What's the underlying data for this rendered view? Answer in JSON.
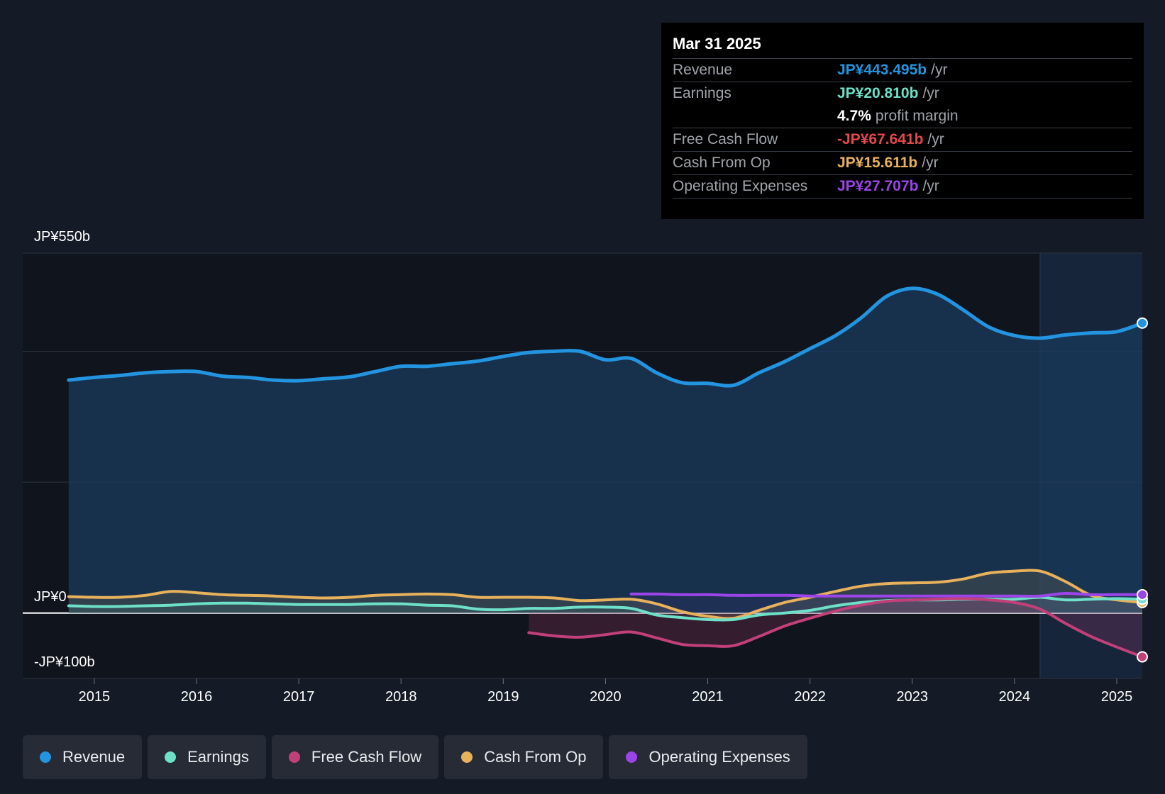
{
  "tooltip": {
    "date": "Mar 31 2025",
    "rows": [
      {
        "label": "Revenue",
        "value": "JP¥443.495b",
        "unit": "/yr",
        "color": "#2394df"
      },
      {
        "label": "Earnings",
        "value": "JP¥20.810b",
        "unit": "/yr",
        "color": "#6ee0c8"
      },
      {
        "label": "",
        "value": "4.7%",
        "unit": "profit margin",
        "color": "#ffffff"
      },
      {
        "label": "Free Cash Flow",
        "value": "-JP¥67.641b",
        "unit": "/yr",
        "color": "#e5484d"
      },
      {
        "label": "Cash From Op",
        "value": "JP¥15.611b",
        "unit": "/yr",
        "color": "#e8b15c"
      },
      {
        "label": "Operating Expenses",
        "value": "JP¥27.707b",
        "unit": "/yr",
        "color": "#9b45e8"
      }
    ]
  },
  "axis": {
    "top_label": "JP¥550b",
    "zero_label": "JP¥0",
    "bottom_label": "-JP¥100b"
  },
  "legend": [
    {
      "label": "Revenue",
      "color": "#2394df"
    },
    {
      "label": "Earnings",
      "color": "#6ee0c8"
    },
    {
      "label": "Free Cash Flow",
      "color": "#c2407a"
    },
    {
      "label": "Cash From Op",
      "color": "#e8b15c"
    },
    {
      "label": "Operating Expenses",
      "color": "#9b45e8"
    }
  ],
  "chart_data": {
    "type": "line",
    "title": "",
    "xlabel": "",
    "ylabel": "",
    "ylim": [
      -100,
      550
    ],
    "xlim": [
      2014.3,
      2025.25
    ],
    "x_ticks": [
      2015,
      2016,
      2017,
      2018,
      2019,
      2020,
      2021,
      2022,
      2023,
      2024,
      2025
    ],
    "x_tick_labels": [
      "2015",
      "2016",
      "2017",
      "2018",
      "2019",
      "2020",
      "2021",
      "2022",
      "2023",
      "2024",
      "2025"
    ],
    "y_ticks": [
      -100,
      0,
      200,
      400,
      550
    ],
    "highlight_start": 2024.25,
    "series": [
      {
        "name": "Revenue",
        "color": "#2394df",
        "x": [
          2014.75,
          2015.0,
          2015.25,
          2015.5,
          2015.75,
          2016.0,
          2016.25,
          2016.5,
          2016.75,
          2017.0,
          2017.25,
          2017.5,
          2017.75,
          2018.0,
          2018.25,
          2018.5,
          2018.75,
          2019.0,
          2019.25,
          2019.5,
          2019.75,
          2020.0,
          2020.25,
          2020.5,
          2020.75,
          2021.0,
          2021.25,
          2021.5,
          2021.75,
          2022.0,
          2022.25,
          2022.5,
          2022.75,
          2023.0,
          2023.25,
          2023.5,
          2023.75,
          2024.0,
          2024.25,
          2024.5,
          2024.75,
          2025.0,
          2025.25
        ],
        "y": [
          356,
          360,
          363,
          367,
          369,
          369,
          362,
          360,
          356,
          355,
          358,
          361,
          369,
          377,
          377,
          381,
          385,
          392,
          398,
          400,
          400,
          387,
          389,
          367,
          352,
          351,
          348,
          367,
          384,
          404,
          424,
          451,
          484,
          496,
          487,
          463,
          437,
          424,
          420,
          425,
          428,
          430,
          443
        ]
      },
      {
        "name": "Earnings",
        "color": "#6ee0c8",
        "x": [
          2014.75,
          2015.0,
          2015.25,
          2015.5,
          2015.75,
          2016.0,
          2016.25,
          2016.5,
          2016.75,
          2017.0,
          2017.25,
          2017.5,
          2017.75,
          2018.0,
          2018.25,
          2018.5,
          2018.75,
          2019.0,
          2019.25,
          2019.5,
          2019.75,
          2020.0,
          2020.25,
          2020.5,
          2020.75,
          2021.0,
          2021.25,
          2021.5,
          2021.75,
          2022.0,
          2022.25,
          2022.5,
          2022.75,
          2023.0,
          2023.25,
          2023.5,
          2023.75,
          2024.0,
          2024.25,
          2024.5,
          2024.75,
          2025.0,
          2025.25
        ],
        "y": [
          11,
          10,
          10,
          11,
          12,
          14,
          15,
          15,
          14,
          13,
          13,
          13,
          14,
          14,
          12,
          11,
          6,
          5,
          7,
          7,
          9,
          9,
          7,
          -3,
          -7,
          -10,
          -10,
          -3,
          0,
          4,
          11,
          16,
          19,
          20,
          20,
          21,
          21,
          21,
          24,
          20,
          21,
          22,
          21
        ]
      },
      {
        "name": "Free Cash Flow",
        "color": "#c2407a",
        "x": [
          2019.25,
          2019.5,
          2019.75,
          2020.0,
          2020.25,
          2020.5,
          2020.75,
          2021.0,
          2021.25,
          2021.5,
          2021.75,
          2022.0,
          2022.25,
          2022.5,
          2022.75,
          2023.0,
          2023.25,
          2023.5,
          2023.75,
          2024.0,
          2024.25,
          2024.5,
          2024.75,
          2025.0,
          2025.25
        ],
        "y": [
          -30,
          -35,
          -37,
          -33,
          -29,
          -38,
          -48,
          -50,
          -50,
          -36,
          -20,
          -8,
          3,
          12,
          18,
          20,
          21,
          22,
          20,
          16,
          6,
          -16,
          -36,
          -52,
          -67
        ]
      },
      {
        "name": "Cash From Op",
        "color": "#e8b15c",
        "x": [
          2014.75,
          2015.0,
          2015.25,
          2015.5,
          2015.75,
          2016.0,
          2016.25,
          2016.5,
          2016.75,
          2017.0,
          2017.25,
          2017.5,
          2017.75,
          2018.0,
          2018.25,
          2018.5,
          2018.75,
          2019.0,
          2019.25,
          2019.5,
          2019.75,
          2020.0,
          2020.25,
          2020.5,
          2020.75,
          2021.0,
          2021.25,
          2021.5,
          2021.75,
          2022.0,
          2022.25,
          2022.5,
          2022.75,
          2023.0,
          2023.25,
          2023.5,
          2023.75,
          2024.0,
          2024.25,
          2024.5,
          2024.75,
          2025.0,
          2025.25
        ],
        "y": [
          25,
          24,
          24,
          27,
          33,
          31,
          28,
          27,
          26,
          24,
          23,
          24,
          27,
          28,
          29,
          28,
          24,
          24,
          24,
          23,
          19,
          20,
          21,
          14,
          2,
          -5,
          -8,
          4,
          16,
          24,
          33,
          41,
          45,
          46,
          47,
          52,
          61,
          64,
          64,
          48,
          27,
          20,
          16
        ]
      },
      {
        "name": "Operating Expenses",
        "color": "#9b45e8",
        "x": [
          2020.25,
          2020.5,
          2020.75,
          2021.0,
          2021.25,
          2021.5,
          2021.75,
          2022.0,
          2022.25,
          2022.5,
          2022.75,
          2023.0,
          2023.25,
          2023.5,
          2023.75,
          2024.0,
          2024.25,
          2024.5,
          2024.75,
          2025.0,
          2025.25
        ],
        "y": [
          29,
          29,
          28,
          28,
          27,
          27,
          27,
          26,
          26,
          26,
          26,
          26,
          26,
          26,
          26,
          26,
          26,
          30,
          28,
          28,
          28
        ]
      }
    ]
  }
}
